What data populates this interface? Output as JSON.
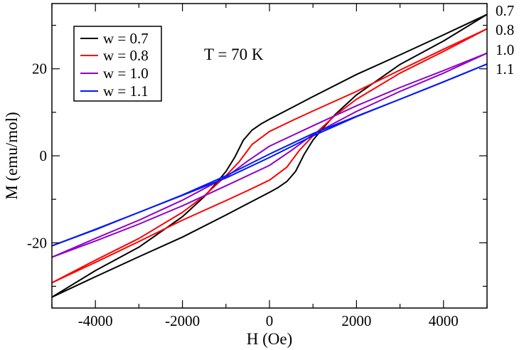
{
  "chart_data": {
    "type": "line",
    "title": "",
    "xlabel": "H (Oe)",
    "ylabel": "M (emu/mol)",
    "xlim": [
      -5000,
      5000
    ],
    "ylim": [
      -35,
      35
    ],
    "x_ticks": [
      -4000,
      -2000,
      0,
      2000,
      4000
    ],
    "x_tick_labels": [
      "-4000",
      "-2000",
      "0",
      "2000",
      "4000"
    ],
    "y_ticks": [
      -20,
      0,
      20
    ],
    "y_tick_labels": [
      "-20",
      "0",
      "20"
    ],
    "annotation": "T = 70 K",
    "legend_position": "top-left",
    "series": [
      {
        "name": "w = 0.7",
        "end_label": "0.7",
        "color": "#000000",
        "upper_branch": {
          "H": [
            -5000,
            -4000,
            -3000,
            -2000,
            -1500,
            -1200,
            -1000,
            -800,
            -600,
            -400,
            -200,
            0,
            500,
            1000,
            2000,
            3000,
            4000,
            5000
          ],
          "M": [
            -32.5,
            -26.4,
            -21.0,
            -14.0,
            -9.4,
            -6.0,
            -3.6,
            -0.4,
            3.6,
            5.9,
            7.3,
            8.4,
            11.0,
            13.6,
            18.7,
            23.2,
            27.8,
            32.5
          ]
        },
        "lower_branch": {
          "H": [
            5000,
            4000,
            3000,
            2000,
            1500,
            1200,
            1000,
            800,
            600,
            400,
            200,
            0,
            -500,
            -1000,
            -2000,
            -3000,
            -4000,
            -5000
          ],
          "M": [
            32.5,
            26.4,
            21.0,
            14.0,
            9.4,
            6.0,
            3.6,
            0.4,
            -3.6,
            -5.9,
            -7.3,
            -8.4,
            -11.0,
            -13.6,
            -18.7,
            -23.2,
            -27.8,
            -32.5
          ]
        }
      },
      {
        "name": "w = 0.8",
        "end_label": "0.8",
        "color": "#ff0000",
        "upper_branch": {
          "H": [
            -5000,
            -4000,
            -3000,
            -2000,
            -1500,
            -1000,
            -700,
            -400,
            0,
            500,
            1000,
            2000,
            3000,
            4000,
            5000
          ],
          "M": [
            -29.2,
            -24.0,
            -19.0,
            -13.0,
            -9.2,
            -4.6,
            -1.4,
            2.6,
            5.6,
            8.0,
            10.3,
            14.8,
            19.7,
            24.5,
            29.2
          ]
        },
        "lower_branch": {
          "H": [
            5000,
            4000,
            3000,
            2000,
            1500,
            1000,
            700,
            400,
            0,
            -500,
            -1000,
            -2000,
            -3000,
            -4000,
            -5000
          ],
          "M": [
            29.2,
            24.0,
            19.0,
            13.0,
            9.2,
            4.6,
            1.4,
            -2.6,
            -5.6,
            -8.0,
            -10.3,
            -14.8,
            -19.7,
            -24.5,
            -29.2
          ]
        }
      },
      {
        "name": "w = 1.0",
        "end_label": "1.0",
        "color": "#9000cc",
        "upper_branch": {
          "H": [
            -5000,
            -4000,
            -3000,
            -2000,
            -1000,
            -500,
            0,
            1000,
            2000,
            3000,
            4000,
            5000
          ],
          "M": [
            -23.3,
            -19.0,
            -14.8,
            -10.2,
            -4.9,
            -1.2,
            2.2,
            6.9,
            11.5,
            15.7,
            19.6,
            23.6
          ]
        },
        "lower_branch": {
          "H": [
            5000,
            4000,
            3000,
            2000,
            1000,
            500,
            0,
            -1000,
            -2000,
            -3000,
            -4000,
            -5000
          ],
          "M": [
            23.6,
            19.0,
            14.8,
            10.2,
            4.9,
            1.2,
            -2.2,
            -6.9,
            -11.5,
            -15.7,
            -19.6,
            -23.3
          ]
        }
      },
      {
        "name": "w = 1.1",
        "end_label": "1.1",
        "color": "#0018ff",
        "upper_branch": {
          "H": [
            -5000,
            -4000,
            -3000,
            -2000,
            -1000,
            0,
            1000,
            2000,
            3000,
            4000,
            5000
          ],
          "M": [
            -20.7,
            -16.9,
            -13.0,
            -9.0,
            -4.6,
            0.4,
            5.1,
            9.1,
            13.0,
            17.0,
            21.1
          ]
        },
        "lower_branch": {
          "H": [
            5000,
            4000,
            3000,
            2000,
            1000,
            0,
            -1000,
            -2000,
            -3000,
            -4000,
            -5000
          ],
          "M": [
            21.1,
            17.0,
            13.0,
            9.0,
            4.6,
            -0.4,
            -5.1,
            -9.1,
            -13.0,
            -17.0,
            -20.7
          ]
        }
      }
    ]
  }
}
